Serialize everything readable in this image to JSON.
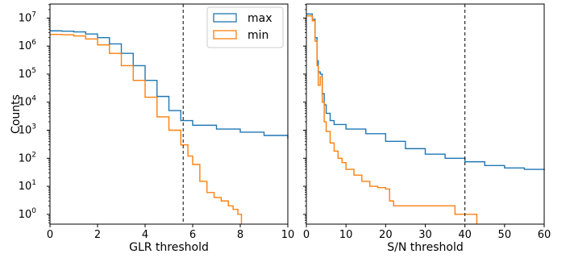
{
  "chart_data": [
    {
      "type": "step",
      "xlabel": "GLR threshold",
      "ylabel": "Counts",
      "xlim": [
        0,
        10
      ],
      "ylim_log10": [
        -0.35,
        7.5
      ],
      "yscale": "log",
      "x_ticks": [
        "0",
        "2",
        "4",
        "6",
        "8",
        "10"
      ],
      "x_tick_values": [
        0,
        2,
        4,
        6,
        8,
        10
      ],
      "y_ticks": [
        {
          "base": "10",
          "exp": "0",
          "value": 0
        },
        {
          "base": "10",
          "exp": "1",
          "value": 1
        },
        {
          "base": "10",
          "exp": "2",
          "value": 2
        },
        {
          "base": "10",
          "exp": "3",
          "value": 3
        },
        {
          "base": "10",
          "exp": "4",
          "value": 4
        },
        {
          "base": "10",
          "exp": "5",
          "value": 5
        },
        {
          "base": "10",
          "exp": "6",
          "value": 6
        },
        {
          "base": "10",
          "exp": "7",
          "value": 7
        }
      ],
      "vline": 5.6,
      "legend": {
        "position": "upper right"
      },
      "series": [
        {
          "name": "max",
          "color": "#1f77b4",
          "points": [
            [
              0,
              3500000.0
            ],
            [
              0.5,
              3400000.0
            ],
            [
              1,
              3200000.0
            ],
            [
              1.5,
              2700000.0
            ],
            [
              2,
              2000000.0
            ],
            [
              2.5,
              1200000.0
            ],
            [
              3,
              550000.0
            ],
            [
              3.5,
              200000.0
            ],
            [
              4,
              60000.0
            ],
            [
              4.5,
              16000.0
            ],
            [
              5,
              5000.0
            ],
            [
              5.5,
              2200.0
            ],
            [
              6,
              1500.0
            ],
            [
              7,
              1100.0
            ],
            [
              8,
              850
            ],
            [
              9,
              650
            ],
            [
              10,
              500
            ]
          ]
        },
        {
          "name": "min",
          "color": "#ff7f0e",
          "points": [
            [
              0,
              2600000.0
            ],
            [
              0.5,
              2550000.0
            ],
            [
              1,
              2300000.0
            ],
            [
              1.5,
              1800000.0
            ],
            [
              2,
              1100000.0
            ],
            [
              2.5,
              550000.0
            ],
            [
              3,
              200000.0
            ],
            [
              3.5,
              60000.0
            ],
            [
              4,
              15000.0
            ],
            [
              4.5,
              3000.0
            ],
            [
              5,
              1000.0
            ],
            [
              5.5,
              300.0
            ],
            [
              5.8,
              120.0
            ],
            [
              6,
              60
            ],
            [
              6.3,
              15
            ],
            [
              6.6,
              6
            ],
            [
              6.9,
              4
            ],
            [
              7.2,
              3
            ],
            [
              7.5,
              2
            ],
            [
              7.7,
              1.5
            ],
            [
              7.9,
              1
            ],
            [
              8.05,
              1
            ]
          ]
        }
      ]
    },
    {
      "type": "step",
      "xlabel": "S/N threshold",
      "xlim": [
        0,
        60
      ],
      "ylim_log10": [
        -0.35,
        7.5
      ],
      "yscale": "log",
      "x_ticks": [
        "0",
        "10",
        "20",
        "30",
        "40",
        "50",
        "60"
      ],
      "x_tick_values": [
        0,
        10,
        20,
        30,
        40,
        50,
        60
      ],
      "vline": 40,
      "series": [
        {
          "name": "max",
          "color": "#1f77b4",
          "points": [
            [
              0,
              14000000.0
            ],
            [
              1.5,
              9000000.0
            ],
            [
              2.2,
              2000000.0
            ],
            [
              2.7,
              300000.0
            ],
            [
              3.0,
              120000.0
            ],
            [
              3.5,
              100000.0
            ],
            [
              4.0,
              20000.0
            ],
            [
              4.5,
              8000.0
            ],
            [
              5,
              4000.0
            ],
            [
              6,
              2200.0
            ],
            [
              7,
              1600.0
            ],
            [
              10,
              1100.0
            ],
            [
              15,
              750
            ],
            [
              20,
              400
            ],
            [
              25,
              220
            ],
            [
              30,
              140
            ],
            [
              35,
              100
            ],
            [
              40,
              75
            ],
            [
              45,
              55
            ],
            [
              50,
              45
            ],
            [
              55,
              40
            ],
            [
              60,
              37
            ]
          ]
        },
        {
          "name": "min",
          "color": "#ff7f0e",
          "points": [
            [
              0,
              12000000.0
            ],
            [
              1.5,
              8000000.0
            ],
            [
              2.2,
              1500000.0
            ],
            [
              2.7,
              200000.0
            ],
            [
              3.0,
              40000.0
            ],
            [
              3.5,
              80000.0
            ],
            [
              4.0,
              10000.0
            ],
            [
              4.5,
              2000.0
            ],
            [
              5,
              900
            ],
            [
              6,
              350
            ],
            [
              7,
              180
            ],
            [
              8,
              100
            ],
            [
              9,
              70
            ],
            [
              10,
              40
            ],
            [
              12,
              25
            ],
            [
              14,
              15
            ],
            [
              16,
              10
            ],
            [
              18,
              9
            ],
            [
              20,
              8
            ],
            [
              21,
              3
            ],
            [
              22,
              2
            ],
            [
              30,
              2
            ],
            [
              37,
              2
            ],
            [
              37.5,
              1
            ],
            [
              43,
              1
            ]
          ]
        }
      ]
    }
  ]
}
